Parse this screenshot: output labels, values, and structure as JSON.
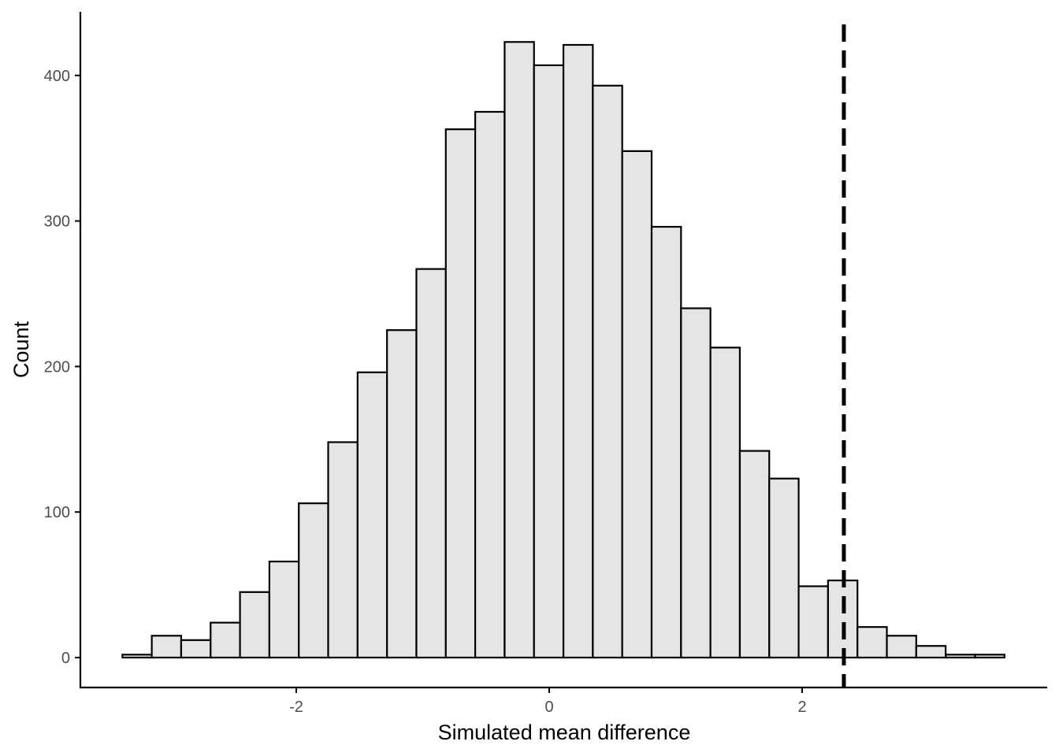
{
  "chart_data": {
    "type": "bar",
    "subtype": "histogram",
    "title": "",
    "xlabel": "Simulated mean difference",
    "ylabel": "Count",
    "xlim": [
      -3.55,
      3.95
    ],
    "ylim": [
      -20,
      440
    ],
    "x_ticks": [
      -2,
      0,
      2
    ],
    "x_tick_labels": [
      "-2",
      "0",
      "2"
    ],
    "y_ticks": [
      0,
      100,
      200,
      300,
      400
    ],
    "y_tick_labels": [
      "0",
      "100",
      "200",
      "300",
      "400"
    ],
    "bin_width": 0.2325,
    "bin_start": -3.375,
    "counts": [
      2,
      15,
      12,
      24,
      45,
      66,
      106,
      148,
      196,
      225,
      267,
      363,
      375,
      423,
      407,
      421,
      393,
      348,
      296,
      240,
      213,
      142,
      123,
      49,
      53,
      21,
      15,
      8,
      2,
      2
    ],
    "reference_line": {
      "x": 2.33,
      "style": "dashed",
      "color": "#000000"
    },
    "bar_fill": "#e5e5e5",
    "bar_stroke": "#000000",
    "grid": false,
    "legend": "none"
  }
}
